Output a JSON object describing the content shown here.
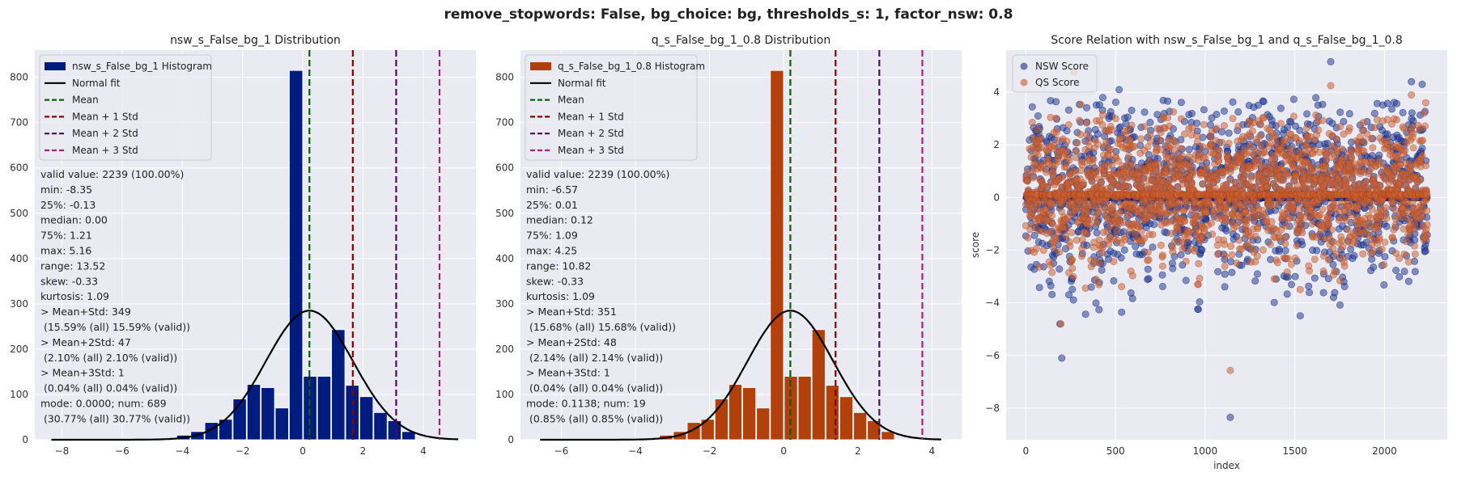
{
  "figure": {
    "suptitle": "remove_stopwords: False, bg_choice: bg, thresholds_s: 1, factor_nsw: 0.8",
    "colors": {
      "panel_bg": "#EAEAF2",
      "grid": "#FFFFFF",
      "nsw": "#001C7F",
      "qs": "#B1400D",
      "normal_fit": "#000000",
      "mean": "#006400",
      "std1": "#8B0000",
      "std2": "#4B0F5B",
      "std3": "#A5227D",
      "nsw_scatter": "#2A3E92",
      "qs_scatter": "#C9653A"
    }
  },
  "chart_data": [
    {
      "type": "bar",
      "title": "nsw_s_False_bg_1 Distribution",
      "xlabel": "",
      "ylabel": "",
      "xlim": [
        -8.9,
        5.75
      ],
      "ylim": [
        0,
        860
      ],
      "xticks": [
        -8,
        -6,
        -4,
        -2,
        0,
        2,
        4
      ],
      "yticks": [
        0,
        100,
        200,
        300,
        400,
        500,
        600,
        700,
        800
      ],
      "bins": {
        "start": -4.2,
        "width": 0.4675,
        "counts": [
          10,
          18,
          38,
          45,
          90,
          122,
          115,
          70,
          815,
          140,
          140,
          243,
          120,
          95,
          60,
          42,
          18
        ]
      },
      "normal_fit": {
        "mean": 0.22,
        "std": 1.45,
        "peak": 285,
        "xrange": [
          -8.35,
          5.16
        ]
      },
      "vlines": {
        "mean": 0.22,
        "plus1": 1.66,
        "plus2": 3.1,
        "plus3": 4.54
      },
      "legend": [
        "nsw_s_False_bg_1 Histogram",
        "Normal fit",
        "Mean",
        "Mean + 1 Std",
        "Mean + 2 Std",
        "Mean + 3 Std"
      ],
      "stats": [
        "valid value: 2239 (100.00%)",
        "min: -8.35",
        "25%: -0.13",
        "median: 0.00",
        "75%: 1.21",
        "max: 5.16",
        "range: 13.52",
        "skew: -0.33",
        "kurtosis: 1.09",
        "> Mean+Std: 349",
        " (15.59% (all) 15.59% (valid))",
        "> Mean+2Std: 47",
        " (2.10% (all) 2.10% (valid))",
        "> Mean+3Std: 1",
        " (0.04% (all) 0.04% (valid))",
        "mode: 0.0000; num: 689",
        " (30.77% (all) 30.77% (valid))"
      ]
    },
    {
      "type": "bar",
      "title": "q_s_False_bg_1_0.8 Distribution",
      "xlabel": "",
      "ylabel": "",
      "xlim": [
        -7.1,
        4.8
      ],
      "ylim": [
        0,
        860
      ],
      "xticks": [
        -6,
        -4,
        -2,
        0,
        2,
        4
      ],
      "yticks": [
        0,
        100,
        200,
        300,
        400,
        500,
        600,
        700,
        800
      ],
      "bins": {
        "start": -3.36,
        "width": 0.374,
        "counts": [
          10,
          18,
          38,
          45,
          90,
          122,
          115,
          70,
          815,
          140,
          140,
          243,
          120,
          95,
          60,
          42,
          18
        ]
      },
      "normal_fit": {
        "mean": 0.18,
        "std": 1.16,
        "peak": 285,
        "xrange": [
          -6.57,
          4.25
        ]
      },
      "vlines": {
        "mean": 0.18,
        "plus1": 1.4,
        "plus2": 2.58,
        "plus3": 3.74
      },
      "legend": [
        "q_s_False_bg_1_0.8 Histogram",
        "Normal fit",
        "Mean",
        "Mean + 1 Std",
        "Mean + 2 Std",
        "Mean + 3 Std"
      ],
      "stats": [
        "valid value: 2239 (100.00%)",
        "min: -6.57",
        "25%: 0.01",
        "median: 0.12",
        "75%: 1.09",
        "max: 4.25",
        "range: 10.82",
        "skew: -0.33",
        "kurtosis: 1.09",
        "> Mean+Std: 351",
        " (15.68% (all) 15.68% (valid))",
        "> Mean+2Std: 48",
        " (2.14% (all) 2.14% (valid))",
        "> Mean+3Std: 1",
        " (0.04% (all) 0.04% (valid))",
        "mode: 0.1138; num: 19",
        " (0.85% (all) 0.85% (valid))"
      ]
    },
    {
      "type": "scatter",
      "title": "Score Relation with nsw_s_False_bg_1 and q_s_False_bg_1_0.8",
      "xlabel": "index",
      "ylabel": "score",
      "xlim": [
        -110,
        2350
      ],
      "ylim": [
        -9.2,
        5.6
      ],
      "xticks": [
        0,
        500,
        1000,
        1500,
        2000
      ],
      "yticks": [
        -8,
        -6,
        -4,
        -2,
        0,
        2,
        4
      ],
      "n_points": 2239,
      "series": [
        {
          "name": "NSW Score",
          "zero_fraction": 0.31,
          "outliers": [
            [
              1140,
              -8.35
            ],
            [
              200,
              -6.1
            ],
            [
              190,
              -4.8
            ],
            [
              1700,
              5.16
            ],
            [
              520,
              4.1
            ],
            [
              2150,
              4.4
            ],
            [
              2210,
              4.3
            ]
          ]
        },
        {
          "name": "QS Score",
          "zero_fraction": 0.0,
          "outliers": [
            [
              1140,
              -6.57
            ],
            [
              195,
              -4.8
            ],
            [
              1700,
              4.25
            ],
            [
              2150,
              3.9
            ],
            [
              2230,
              3.6
            ]
          ]
        }
      ],
      "legend": [
        "NSW Score",
        "QS Score"
      ]
    }
  ]
}
